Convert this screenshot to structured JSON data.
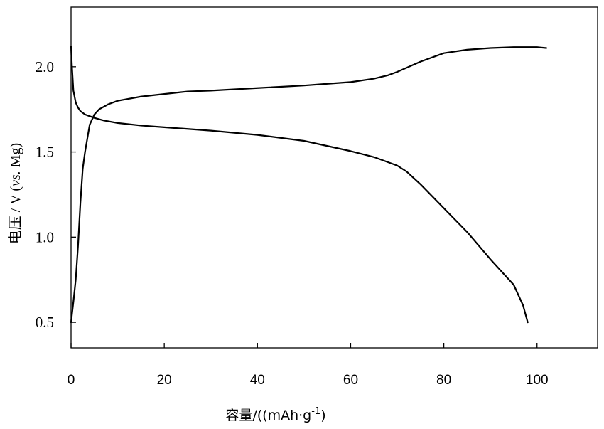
{
  "chart_data": {
    "type": "line",
    "title": "",
    "xlabel": "容量/((mAh·g",
    "xlabel_sup": "-1",
    "xlabel_tail": ")",
    "ylabel_prefix": "电压 / V (",
    "ylabel_italic": "vs.",
    "ylabel_suffix": " Mg)",
    "xlim": [
      0,
      113
    ],
    "ylim": [
      0.35,
      2.35
    ],
    "x_ticks": [
      0,
      20,
      40,
      60,
      80,
      100
    ],
    "x_tick_labels": [
      "0",
      "20",
      "40",
      "60",
      "80",
      "100"
    ],
    "y_ticks": [
      0.5,
      1.0,
      1.5,
      2.0
    ],
    "y_tick_labels": [
      "0.5",
      "1.0",
      "1.5",
      "2.0"
    ],
    "grid": false,
    "line_color": "#000000",
    "series": [
      {
        "x": [
          0,
          0.2,
          0.5,
          1,
          1.5,
          2,
          3,
          4,
          5,
          7,
          10,
          15,
          20,
          30,
          40,
          50,
          60,
          65,
          70,
          72,
          75,
          80,
          85,
          90,
          95,
          97,
          98
        ],
        "y": [
          2.12,
          2.0,
          1.86,
          1.79,
          1.76,
          1.74,
          1.72,
          1.71,
          1.7,
          1.685,
          1.67,
          1.655,
          1.645,
          1.625,
          1.6,
          1.565,
          1.505,
          1.47,
          1.42,
          1.385,
          1.31,
          1.17,
          1.03,
          0.87,
          0.72,
          0.6,
          0.5
        ]
      },
      {
        "x": [
          0,
          0.5,
          1,
          1.5,
          2,
          2.5,
          3,
          3.5,
          4,
          5,
          6,
          8,
          10,
          15,
          20,
          25,
          30,
          40,
          50,
          55,
          60,
          65,
          68,
          70,
          75,
          80,
          85,
          90,
          95,
          100,
          102
        ],
        "y": [
          0.5,
          0.62,
          0.75,
          0.95,
          1.2,
          1.4,
          1.5,
          1.58,
          1.66,
          1.72,
          1.75,
          1.78,
          1.8,
          1.825,
          1.84,
          1.855,
          1.86,
          1.875,
          1.89,
          1.9,
          1.91,
          1.93,
          1.95,
          1.97,
          2.03,
          2.08,
          2.1,
          2.11,
          2.115,
          2.115,
          2.11
        ]
      }
    ]
  }
}
